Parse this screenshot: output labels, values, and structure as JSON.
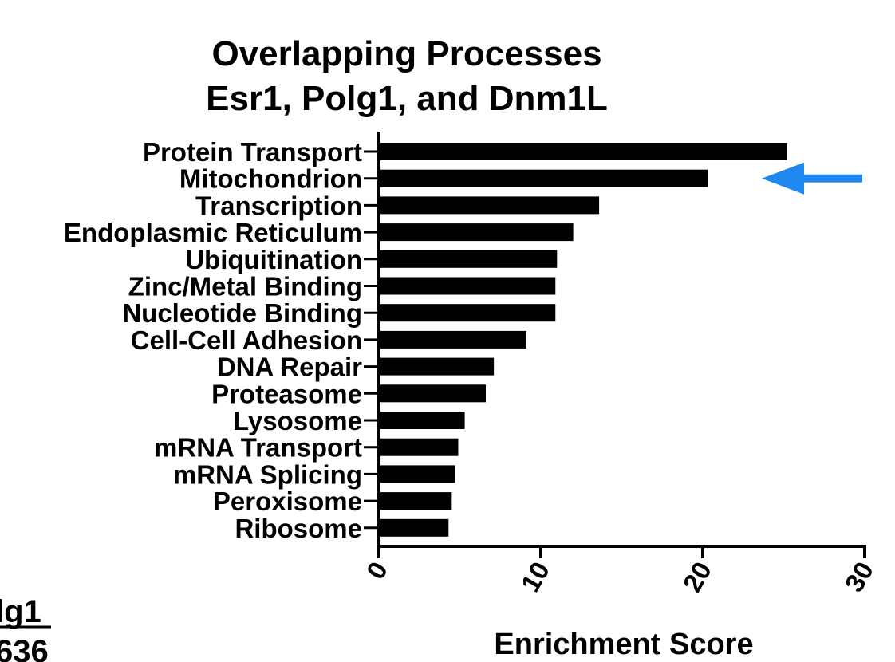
{
  "chart_data": {
    "type": "bar",
    "orientation": "horizontal",
    "title": [
      "Overlapping Processes",
      "Esr1, Polg1, and Dnm1L"
    ],
    "xlabel": "Enrichment Score",
    "ylabel": "",
    "xlim": [
      0,
      30
    ],
    "xticks": [
      "0",
      "10",
      "20",
      "30"
    ],
    "categories": [
      "Protein Transport",
      "Mitochondrion",
      "Transcription",
      "Endoplasmic Reticulum",
      "Ubiquitination",
      "Zinc/Metal Binding",
      "Nucleotide Binding",
      "Cell-Cell Adhesion",
      "DNA Repair",
      "Proteasome",
      "Lysosome",
      "mRNA Transport",
      "mRNA Splicing",
      "Peroxisome",
      "Ribosome"
    ],
    "values": [
      25.2,
      20.3,
      13.6,
      12.0,
      11.0,
      10.9,
      10.9,
      9.1,
      7.1,
      6.6,
      5.3,
      4.9,
      4.7,
      4.5,
      4.3
    ],
    "grid": false,
    "bar_color": "#000000",
    "annotation": {
      "type": "arrow",
      "color": "#1E88F0",
      "points_to": "Mitochondrion"
    }
  },
  "fragment": {
    "line1": "lg1",
    "line2": "636"
  }
}
